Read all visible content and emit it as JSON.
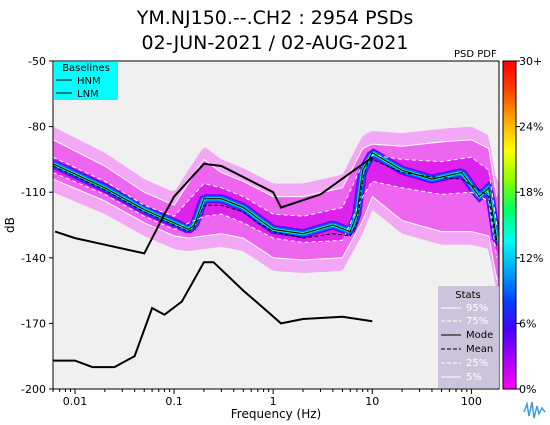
{
  "chart_data": {
    "type": "heatmap",
    "title_line1": "YM.NJ150.--.CH2 : 2954 PSDs",
    "title_line2": "02-JUN-2021 / 02-AUG-2021",
    "corner_label": "PSD PDF",
    "xlabel": "Frequency (Hz)",
    "ylabel": "dB",
    "x_scale": "log",
    "xlim": [
      0.006,
      190
    ],
    "ylim": [
      -200,
      -50
    ],
    "x_ticks": [
      {
        "value": 0.01,
        "label": "0.01"
      },
      {
        "value": 0.1,
        "label": "0.1"
      },
      {
        "value": 1,
        "label": "1"
      },
      {
        "value": 10,
        "label": "10"
      },
      {
        "value": 100,
        "label": "100"
      }
    ],
    "y_ticks": [
      {
        "value": -50,
        "label": "-50"
      },
      {
        "value": -80,
        "label": "-80"
      },
      {
        "value": -110,
        "label": "-110"
      },
      {
        "value": -140,
        "label": "-140"
      },
      {
        "value": -170,
        "label": "-170"
      },
      {
        "value": -200,
        "label": "-200"
      }
    ],
    "colorbar": {
      "min": 0,
      "max": 30,
      "ticks": [
        {
          "value": 30,
          "label": "30+"
        },
        {
          "value": 24,
          "label": "24%"
        },
        {
          "value": 18,
          "label": "18%"
        },
        {
          "value": 12,
          "label": "12%"
        },
        {
          "value": 6,
          "label": "6%"
        },
        {
          "value": 0,
          "label": "0%"
        }
      ],
      "colors": [
        "#ff00ff",
        "#aa00ff",
        "#4400ff",
        "#0044ff",
        "#00aaff",
        "#00ffee",
        "#00ff66",
        "#88ff00",
        "#ffff00",
        "#ffaa00",
        "#ff4400",
        "#ff0000"
      ]
    },
    "baselines_legend": {
      "title": "Baselines",
      "items": [
        "HNM",
        "LNM"
      ],
      "background": "#00ffff"
    },
    "stats_legend": {
      "title": "Stats",
      "items": [
        "95%",
        "75%",
        "Mode",
        "Mean",
        "25%",
        "5%"
      ],
      "background": "#c8c0d8"
    },
    "series": [
      {
        "name": "HNM",
        "x": [
          0.0063,
          0.01,
          0.02,
          0.05,
          0.08,
          0.1,
          0.2,
          0.3,
          1,
          1.2,
          3,
          10
        ],
        "y": [
          -128,
          -131,
          -134,
          -138,
          -120,
          -112,
          -97,
          -98,
          -110,
          -117,
          -111,
          -94
        ]
      },
      {
        "name": "LNM",
        "x": [
          0.006,
          0.01,
          0.015,
          0.025,
          0.04,
          0.06,
          0.08,
          0.12,
          0.2,
          0.25,
          0.5,
          0.8,
          1.2,
          2,
          5,
          10
        ],
        "y": [
          -187,
          -187,
          -190,
          -190,
          -185,
          -163,
          -166,
          -160,
          -142,
          -142,
          -155,
          -163,
          -170,
          -168,
          -167,
          -169
        ]
      },
      {
        "name": "Mode",
        "x": [
          0.006,
          0.02,
          0.05,
          0.1,
          0.14,
          0.16,
          0.2,
          0.3,
          0.5,
          0.7,
          1,
          2,
          4,
          6,
          7,
          8,
          9,
          10,
          20,
          40,
          80,
          120,
          150,
          180
        ],
        "y": [
          -97,
          -108,
          -118,
          -124,
          -127,
          -125,
          -113,
          -113,
          -117,
          -122,
          -127,
          -129,
          -125,
          -128,
          -120,
          -100,
          -96,
          -92,
          -100,
          -104,
          -101,
          -112,
          -108,
          -132
        ]
      },
      {
        "name": "Mean",
        "x": [
          0.006,
          0.02,
          0.05,
          0.1,
          0.14,
          0.16,
          0.2,
          0.3,
          0.5,
          0.7,
          1,
          2,
          4,
          6,
          7,
          8,
          9,
          10,
          20,
          40,
          80,
          120,
          150,
          180
        ],
        "y": [
          -98,
          -109,
          -119,
          -125,
          -128,
          -126,
          -116,
          -116,
          -119,
          -124,
          -128,
          -131,
          -129,
          -130,
          -124,
          -104,
          -97,
          -95,
          -101,
          -103,
          -104,
          -109,
          -112,
          -135
        ]
      },
      {
        "name": "95%",
        "x": [
          0.006,
          0.02,
          0.05,
          0.1,
          0.2,
          0.3,
          0.5,
          1,
          2,
          5,
          8,
          10,
          20,
          50,
          100,
          150,
          180
        ],
        "y": [
          -86,
          -98,
          -110,
          -116,
          -95,
          -101,
          -105,
          -112,
          -112,
          -108,
          -90,
          -88,
          -89,
          -87,
          -86,
          -90,
          -112
        ]
      },
      {
        "name": "75%",
        "x": [
          0.006,
          0.02,
          0.05,
          0.1,
          0.2,
          0.3,
          0.5,
          1,
          2,
          5,
          8,
          10,
          20,
          50,
          100,
          150,
          180
        ],
        "y": [
          -94,
          -105,
          -116,
          -121,
          -106,
          -108,
          -112,
          -120,
          -121,
          -117,
          -97,
          -93,
          -95,
          -96,
          -94,
          -100,
          -125
        ]
      },
      {
        "name": "25%",
        "x": [
          0.006,
          0.02,
          0.05,
          0.1,
          0.2,
          0.3,
          0.5,
          1,
          2,
          5,
          8,
          10,
          20,
          50,
          100,
          150,
          180
        ],
        "y": [
          -101,
          -111,
          -121,
          -127,
          -121,
          -120,
          -124,
          -131,
          -133,
          -132,
          -112,
          -105,
          -108,
          -111,
          -110,
          -114,
          -140
        ]
      },
      {
        "name": "5%",
        "x": [
          0.006,
          0.02,
          0.05,
          0.1,
          0.14,
          0.2,
          0.3,
          0.5,
          1,
          2,
          5,
          8,
          10,
          20,
          50,
          100,
          150,
          180
        ],
        "y": [
          -104,
          -114,
          -124,
          -130,
          -131,
          -130,
          -129,
          -131,
          -140,
          -141,
          -140,
          -123,
          -112,
          -123,
          -128,
          -128,
          -130,
          -150
        ]
      }
    ],
    "pdf_core": {
      "x": [
        0.006,
        0.02,
        0.05,
        0.1,
        0.14,
        0.16,
        0.2,
        0.3,
        0.5,
        0.7,
        1,
        2,
        4,
        6,
        7,
        8,
        9,
        10,
        20,
        40,
        80,
        120,
        150,
        180
      ],
      "y": [
        -97,
        -108,
        -118,
        -124,
        -127,
        -125,
        -113,
        -113,
        -117,
        -122,
        -127,
        -129,
        -125,
        -128,
        -120,
        -100,
        -96,
        -92,
        -100,
        -104,
        -101,
        -112,
        -108,
        -132
      ]
    }
  }
}
